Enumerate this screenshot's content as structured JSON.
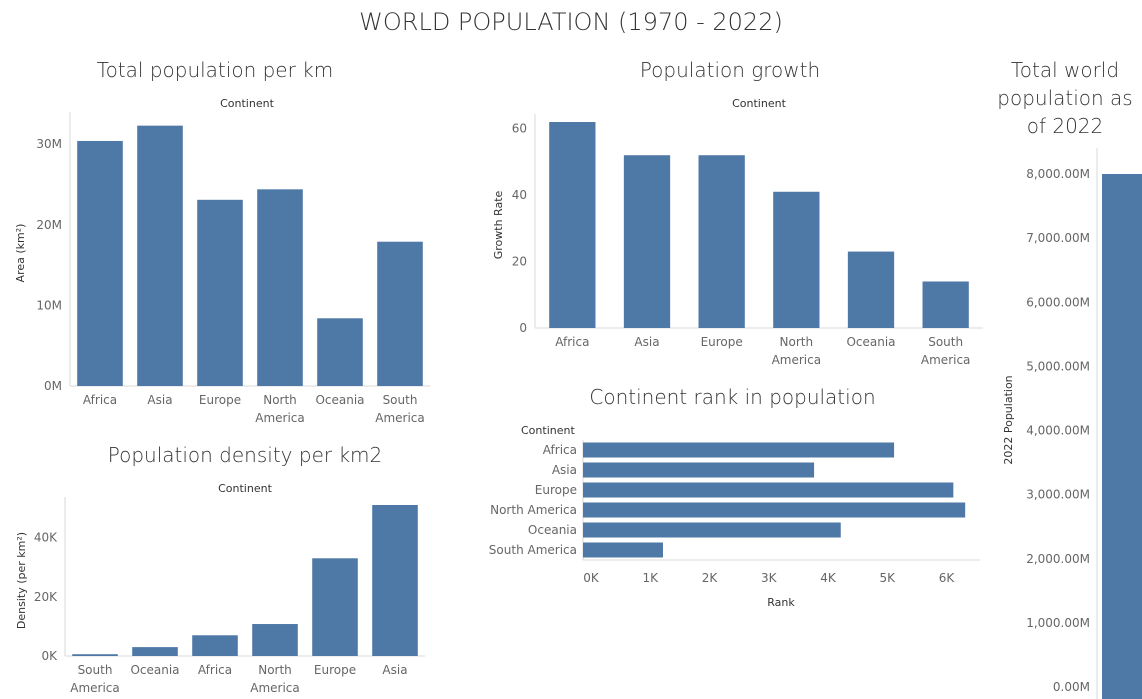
{
  "dashboard": {
    "title": "WORLD POPULATION (1970 - 2022)"
  },
  "colors": {
    "bar": "#4e79a7",
    "axis": "#d9d9d9"
  },
  "chart_data": [
    {
      "id": "area",
      "type": "bar",
      "title": "Total population per km",
      "header": "Continent",
      "ylabel": "Area (km²)",
      "categories": [
        "Africa",
        "Asia",
        "Europe",
        "North America",
        "Oceania",
        "South America"
      ],
      "values": [
        30.4,
        32.3,
        23.1,
        24.4,
        8.4,
        17.9
      ],
      "ylim": [
        0,
        33
      ],
      "yticks": [
        0,
        10,
        20,
        30
      ],
      "ytick_labels": [
        "0M",
        "10M",
        "20M",
        "30M"
      ]
    },
    {
      "id": "growth",
      "type": "bar",
      "title": "Population growth",
      "header": "Continent",
      "ylabel": "Growth Rate",
      "categories": [
        "Africa",
        "Asia",
        "Europe",
        "North America",
        "Oceania",
        "South America"
      ],
      "values": [
        62,
        52,
        52,
        41,
        23,
        14
      ],
      "ylim": [
        0,
        62
      ],
      "yticks": [
        0,
        20,
        40,
        60
      ],
      "ytick_labels": [
        "0",
        "20",
        "40",
        "60"
      ]
    },
    {
      "id": "density",
      "type": "bar",
      "title": "Population density per km2",
      "header": "Continent",
      "ylabel": "Density (per km²)",
      "categories": [
        "South America",
        "Oceania",
        "Africa",
        "North America",
        "Europe",
        "Asia"
      ],
      "values": [
        600,
        3000,
        7000,
        10800,
        33000,
        51000
      ],
      "ylim": [
        0,
        51000
      ],
      "yticks": [
        0,
        20000,
        40000
      ],
      "ytick_labels": [
        "0K",
        "20K",
        "40K"
      ]
    },
    {
      "id": "rank",
      "type": "bar",
      "orientation": "horizontal",
      "title": "Continent rank in population",
      "header": "Continent",
      "xlabel": "Rank",
      "categories": [
        "Africa",
        "Asia",
        "Europe",
        "North America",
        "Oceania",
        "South America"
      ],
      "values": [
        5250,
        3900,
        6250,
        6450,
        4350,
        1350
      ],
      "xlim": [
        0,
        6700
      ],
      "xticks": [
        0,
        1000,
        2000,
        3000,
        4000,
        5000,
        6000
      ],
      "xtick_labels": [
        "0K",
        "1K",
        "2K",
        "3K",
        "4K",
        "5K",
        "6K"
      ]
    },
    {
      "id": "total",
      "type": "bar",
      "title": "Total world population as of 2022",
      "ylabel": "2022 Population",
      "categories": [
        ""
      ],
      "values": [
        8000
      ],
      "ylim": [
        0,
        8000
      ],
      "yticks": [
        0,
        1000,
        2000,
        3000,
        4000,
        5000,
        6000,
        7000,
        8000
      ],
      "ytick_labels": [
        "0.00M",
        "1,000.00M",
        "2,000.00M",
        "3,000.00M",
        "4,000.00M",
        "5,000.00M",
        "6,000.00M",
        "7,000.00M",
        "8,000.00M"
      ]
    }
  ]
}
